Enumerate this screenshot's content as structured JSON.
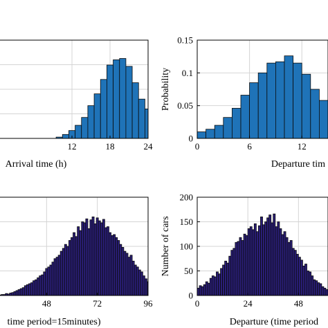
{
  "colors": {
    "blue_bar": "#1f73b8",
    "purple_bar": "#2a1e78",
    "bar_edge": "#0a0a0a",
    "grid": "#d4d4d4",
    "axis": "#000000"
  },
  "chart_data": [
    {
      "id": "arrival-probability",
      "type": "bar",
      "xlabel": "Arrival time (h)",
      "ylabel": "",
      "grid": true,
      "xlim": [
        0,
        24
      ],
      "ylim": [
        0,
        0.15
      ],
      "xticks": [
        "12",
        "18",
        "24"
      ],
      "xtick_values": [
        12,
        18,
        24
      ],
      "yticks": [],
      "ytick_values": [],
      "bin_width": 1,
      "x": [
        1,
        2,
        3,
        4,
        5,
        6,
        7,
        8,
        9,
        10,
        11,
        12,
        13,
        14,
        15,
        16,
        17,
        18,
        19,
        20,
        21,
        22,
        23,
        24
      ],
      "values": [
        0.0,
        0.0,
        0.0,
        0.0,
        0.0,
        0.0,
        0.0,
        0.0,
        0.0,
        0.002,
        0.006,
        0.012,
        0.02,
        0.032,
        0.05,
        0.068,
        0.09,
        0.112,
        0.12,
        0.122,
        0.11,
        0.085,
        0.06,
        0.045
      ],
      "bar_color": "#1f73b8"
    },
    {
      "id": "departure-probability",
      "type": "bar",
      "xlabel": "Departure tim",
      "ylabel": "Probability",
      "grid": true,
      "xlim": [
        0,
        15
      ],
      "ylim": [
        0,
        0.15
      ],
      "xticks": [
        "0",
        "6",
        "12"
      ],
      "xtick_values": [
        0,
        6,
        12
      ],
      "yticks": [
        "0",
        "0.05",
        "0.1",
        "0.15"
      ],
      "ytick_values": [
        0,
        0.05,
        0.1,
        0.15
      ],
      "bin_width": 1,
      "x": [
        0.5,
        1.5,
        2.5,
        3.5,
        4.5,
        5.5,
        6.5,
        7.5,
        8.5,
        9.5,
        10.5,
        11.5,
        12.5,
        13.5,
        14.5
      ],
      "values": [
        0.01,
        0.014,
        0.02,
        0.032,
        0.046,
        0.066,
        0.085,
        0.1,
        0.115,
        0.117,
        0.126,
        0.115,
        0.098,
        0.075,
        0.058
      ],
      "bar_color": "#1f73b8"
    },
    {
      "id": "arrival-cars",
      "type": "bar",
      "xlabel": "time period=15minutes)",
      "ylabel": "",
      "grid": true,
      "xlim": [
        24,
        96
      ],
      "ylim": [
        0,
        200
      ],
      "xticks": [
        "48",
        "72",
        "96"
      ],
      "xtick_values": [
        48,
        72,
        96
      ],
      "yticks": [],
      "ytick_values": [],
      "bin_width": 1,
      "x": [
        26,
        27,
        28,
        29,
        30,
        31,
        32,
        33,
        34,
        35,
        36,
        37,
        38,
        39,
        40,
        41,
        42,
        43,
        44,
        45,
        46,
        47,
        48,
        49,
        50,
        51,
        52,
        53,
        54,
        55,
        56,
        57,
        58,
        59,
        60,
        61,
        62,
        63,
        64,
        65,
        66,
        67,
        68,
        69,
        70,
        71,
        72,
        73,
        74,
        75,
        76,
        77,
        78,
        79,
        80,
        81,
        82,
        83,
        84,
        85,
        86,
        87,
        88,
        89,
        90,
        91,
        92,
        93,
        94,
        95,
        96
      ],
      "values": [
        1,
        2,
        2,
        4,
        3,
        5,
        6,
        8,
        10,
        12,
        14,
        16,
        20,
        22,
        24,
        26,
        30,
        32,
        36,
        40,
        42,
        48,
        55,
        58,
        62,
        68,
        75,
        78,
        82,
        90,
        96,
        104,
        100,
        112,
        118,
        128,
        120,
        140,
        132,
        150,
        148,
        156,
        136,
        154,
        160,
        146,
        158,
        152,
        148,
        155,
        138,
        140,
        128,
        122,
        124,
        118,
        112,
        104,
        98,
        90,
        86,
        78,
        82,
        70,
        62,
        58,
        52,
        48,
        40,
        34,
        28
      ],
      "bar_color": "#2a1e78"
    },
    {
      "id": "departure-cars",
      "type": "bar",
      "xlabel": "Departure (time period",
      "ylabel": "Number of cars",
      "grid": true,
      "xlim": [
        0,
        62
      ],
      "ylim": [
        0,
        200
      ],
      "xticks": [
        "0",
        "24",
        "48"
      ],
      "xtick_values": [
        0,
        24,
        48
      ],
      "yticks": [
        "0",
        "50",
        "100",
        "150",
        "200"
      ],
      "ytick_values": [
        0,
        50,
        100,
        150,
        200
      ],
      "bin_width": 1,
      "x": [
        0.5,
        1.5,
        2.5,
        3.5,
        4.5,
        5.5,
        6.5,
        7.5,
        8.5,
        9.5,
        10.5,
        11.5,
        12.5,
        13.5,
        14.5,
        15.5,
        16.5,
        17.5,
        18.5,
        19.5,
        20.5,
        21.5,
        22.5,
        23.5,
        24.5,
        25.5,
        26.5,
        27.5,
        28.5,
        29.5,
        30.5,
        31.5,
        32.5,
        33.5,
        34.5,
        35.5,
        36.5,
        37.5,
        38.5,
        39.5,
        40.5,
        41.5,
        42.5,
        43.5,
        44.5,
        45.5,
        46.5,
        47.5,
        48.5,
        49.5,
        50.5,
        51.5,
        52.5,
        53.5,
        54.5,
        55.5,
        56.5,
        57.5,
        58.5,
        59.5,
        60.5,
        61.5
      ],
      "values": [
        15,
        20,
        18,
        22,
        28,
        25,
        35,
        40,
        38,
        48,
        44,
        55,
        62,
        70,
        66,
        80,
        92,
        96,
        108,
        110,
        118,
        112,
        125,
        122,
        136,
        140,
        134,
        146,
        130,
        142,
        160,
        144,
        150,
        158,
        164,
        148,
        166,
        140,
        150,
        136,
        124,
        130,
        118,
        108,
        112,
        96,
        92,
        84,
        78,
        72,
        60,
        64,
        50,
        48,
        40,
        32,
        30,
        26,
        24,
        18,
        15,
        12
      ],
      "bar_color": "#2a1e78"
    }
  ]
}
